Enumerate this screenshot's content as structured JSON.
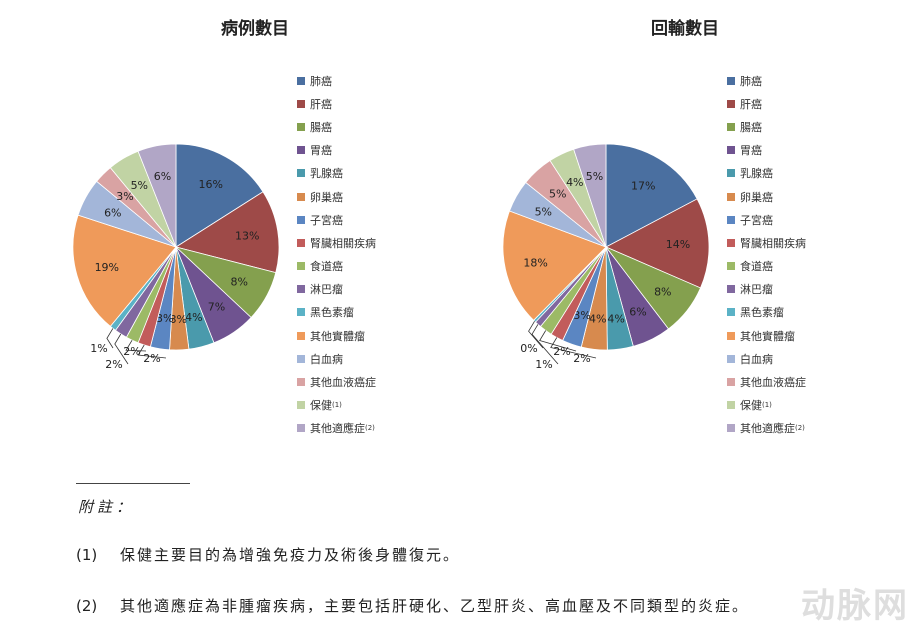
{
  "chart_data": [
    {
      "type": "pie",
      "title": "病例數目",
      "categories": [
        "肺癌",
        "肝癌",
        "腸癌",
        "胃癌",
        "乳腺癌",
        "卵巢癌",
        "子宮癌",
        "腎臟相關疾病",
        "食道癌",
        "淋巴瘤",
        "黑色素瘤",
        "其他實體瘤",
        "白血病",
        "其他血液癌症",
        "保健",
        "其他適應症"
      ],
      "values": [
        16,
        13,
        8,
        7,
        4,
        3,
        3,
        2,
        2,
        2,
        1,
        19,
        6,
        3,
        5,
        6
      ],
      "labels": [
        "16%",
        "13%",
        "8%",
        "7%",
        "4%",
        "3%",
        "3%",
        "2%",
        "2%",
        "2%",
        "1%",
        "19%",
        "6%",
        "3%",
        "5%",
        "6%"
      ]
    },
    {
      "type": "pie",
      "title": "回輸數目",
      "categories": [
        "肺癌",
        "肝癌",
        "腸癌",
        "胃癌",
        "乳腺癌",
        "卵巢癌",
        "子宮癌",
        "腎臟相關疾病",
        "食道癌",
        "淋巴瘤",
        "黑色素瘤",
        "其他實體瘤",
        "白血病",
        "其他血液癌症",
        "保健",
        "其他適應症"
      ],
      "values": [
        17,
        14,
        8,
        6,
        4,
        4,
        3,
        2,
        2,
        1,
        0.4,
        18,
        5,
        5,
        4,
        5
      ],
      "labels": [
        "17%",
        "14%",
        "8%",
        "6%",
        "4%",
        "4%",
        "3%",
        "2%",
        "2%",
        "1%",
        "0%",
        "18%",
        "5%",
        "5%",
        "4%",
        "5%"
      ]
    }
  ],
  "colors": [
    "#4a6fa0",
    "#9e4a48",
    "#84a04e",
    "#6f5390",
    "#4a9aac",
    "#d78a4e",
    "#5b86c2",
    "#c25c5b",
    "#9cba66",
    "#80689f",
    "#5bb2c6",
    "#ef9a5a",
    "#a3b6d9",
    "#d9a3a3",
    "#c1d3a4",
    "#b1a6c6"
  ],
  "legend_items": [
    {
      "label": "肺癌",
      "sup": ""
    },
    {
      "label": "肝癌",
      "sup": ""
    },
    {
      "label": "腸癌",
      "sup": ""
    },
    {
      "label": "胃癌",
      "sup": ""
    },
    {
      "label": "乳腺癌",
      "sup": ""
    },
    {
      "label": "卵巢癌",
      "sup": ""
    },
    {
      "label": "子宮癌",
      "sup": ""
    },
    {
      "label": "腎臟相關疾病",
      "sup": ""
    },
    {
      "label": "食道癌",
      "sup": ""
    },
    {
      "label": "淋巴瘤",
      "sup": ""
    },
    {
      "label": "黑色素瘤",
      "sup": ""
    },
    {
      "label": "其他實體瘤",
      "sup": ""
    },
    {
      "label": "白血病",
      "sup": ""
    },
    {
      "label": "其他血液癌症",
      "sup": ""
    },
    {
      "label": "保健",
      "sup": "(1)"
    },
    {
      "label": "其他適應症",
      "sup": "(2)"
    }
  ],
  "notes": {
    "title": "附註：",
    "items": [
      {
        "num": "(1)",
        "text": "保健主要目的為增強免疫力及術後身體復元。"
      },
      {
        "num": "(2)",
        "text": "其他適應症為非腫瘤疾病，主要包括肝硬化、乙型肝炎、高血壓及不同類型的炎症。"
      }
    ]
  },
  "watermark": "动脉网"
}
